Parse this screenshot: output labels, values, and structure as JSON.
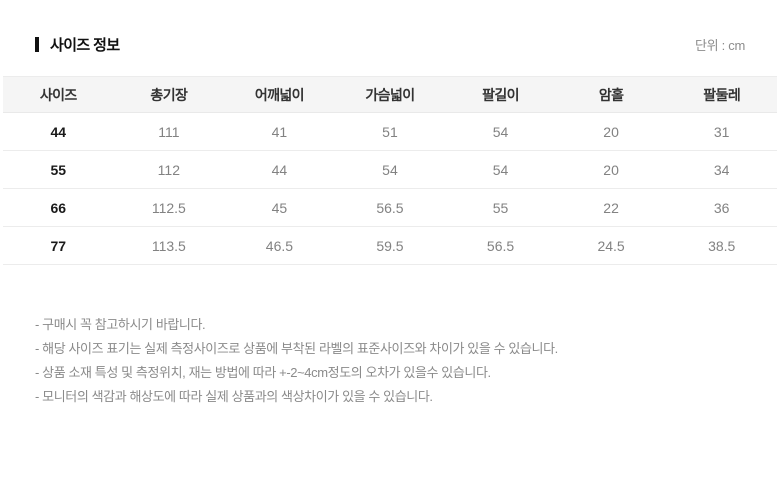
{
  "page": {
    "title": "사이즈 정보",
    "unit_label": "단위 : cm"
  },
  "size_table": {
    "columns": [
      "사이즈",
      "총기장",
      "어깨넓이",
      "가슴넓이",
      "팔길이",
      "암홀",
      "팔둘레"
    ],
    "rows": [
      [
        "44",
        "111",
        "41",
        "51",
        "54",
        "20",
        "31"
      ],
      [
        "55",
        "112",
        "44",
        "54",
        "54",
        "20",
        "34"
      ],
      [
        "66",
        "112.5",
        "45",
        "56.5",
        "55",
        "22",
        "36"
      ],
      [
        "77",
        "113.5",
        "46.5",
        "59.5",
        "56.5",
        "24.5",
        "38.5"
      ]
    ]
  },
  "notes": [
    "- 구매시 꼭 참고하시기 바랍니다.",
    "- 해당 사이즈 표기는 실제 측정사이즈로 상품에 부착된 라벨의 표준사이즈와 차이가 있을 수 있습니다.",
    "- 상품 소재 특성 및 측정위치, 재는 방법에 따라 +-2~4cm정도의 오차가 있을수 있습니다.",
    "- 모니터의 색감과 해상도에 따라 실제 상품과의 색상차이가 있을 수 있습니다."
  ]
}
